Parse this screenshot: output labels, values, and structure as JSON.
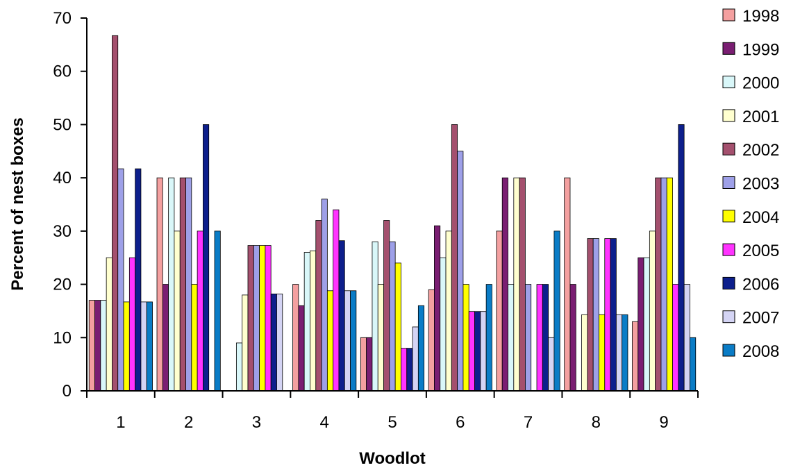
{
  "chart_data": {
    "type": "bar",
    "title": "",
    "xlabel": "Woodlot",
    "ylabel": "Percent of nest boxes",
    "ylim": [
      0,
      70
    ],
    "yticks": [
      "0",
      "10",
      "20",
      "30",
      "40",
      "50",
      "60",
      "70"
    ],
    "categories": [
      "1",
      "2",
      "3",
      "4",
      "5",
      "6",
      "7",
      "8",
      "9"
    ],
    "grid": false,
    "legend_position": "right",
    "series": [
      {
        "name": "1998",
        "color": "#F4A0A0",
        "values": [
          17,
          40,
          0,
          20,
          10,
          19,
          30,
          40,
          13
        ]
      },
      {
        "name": "1999",
        "color": "#7A1E72",
        "values": [
          17,
          20,
          0,
          16,
          10,
          31,
          40,
          20,
          25
        ]
      },
      {
        "name": "2000",
        "color": "#D9F7F9",
        "values": [
          17,
          40,
          9,
          26,
          28,
          25,
          20,
          0,
          25
        ]
      },
      {
        "name": "2001",
        "color": "#FFFFCF",
        "values": [
          25,
          30,
          18,
          26.3,
          20,
          30,
          40,
          14.3,
          30
        ]
      },
      {
        "name": "2002",
        "color": "#A4506E",
        "values": [
          66.7,
          40,
          27.3,
          32,
          32,
          50,
          40,
          28.6,
          40
        ]
      },
      {
        "name": "2003",
        "color": "#9EA0E8",
        "values": [
          41.7,
          40,
          27.3,
          36,
          28,
          45,
          20,
          28.6,
          40
        ]
      },
      {
        "name": "2004",
        "color": "#FFFF00",
        "values": [
          16.7,
          20,
          27.3,
          18.8,
          24,
          20,
          0,
          14.3,
          40
        ]
      },
      {
        "name": "2005",
        "color": "#FF33FF",
        "values": [
          25,
          30,
          27.3,
          34,
          8,
          14.9,
          20,
          28.6,
          20
        ]
      },
      {
        "name": "2006",
        "color": "#0D1F8C",
        "values": [
          41.7,
          50,
          18.2,
          28.2,
          8,
          14.9,
          20,
          28.6,
          50
        ]
      },
      {
        "name": "2007",
        "color": "#D4D4F4",
        "values": [
          16.7,
          0,
          18.2,
          18.8,
          12,
          14.9,
          10,
          14.3,
          20
        ]
      },
      {
        "name": "2008",
        "color": "#0A7CC6",
        "values": [
          16.7,
          30,
          0,
          18.8,
          16,
          20,
          30,
          14.3,
          10
        ]
      }
    ]
  }
}
